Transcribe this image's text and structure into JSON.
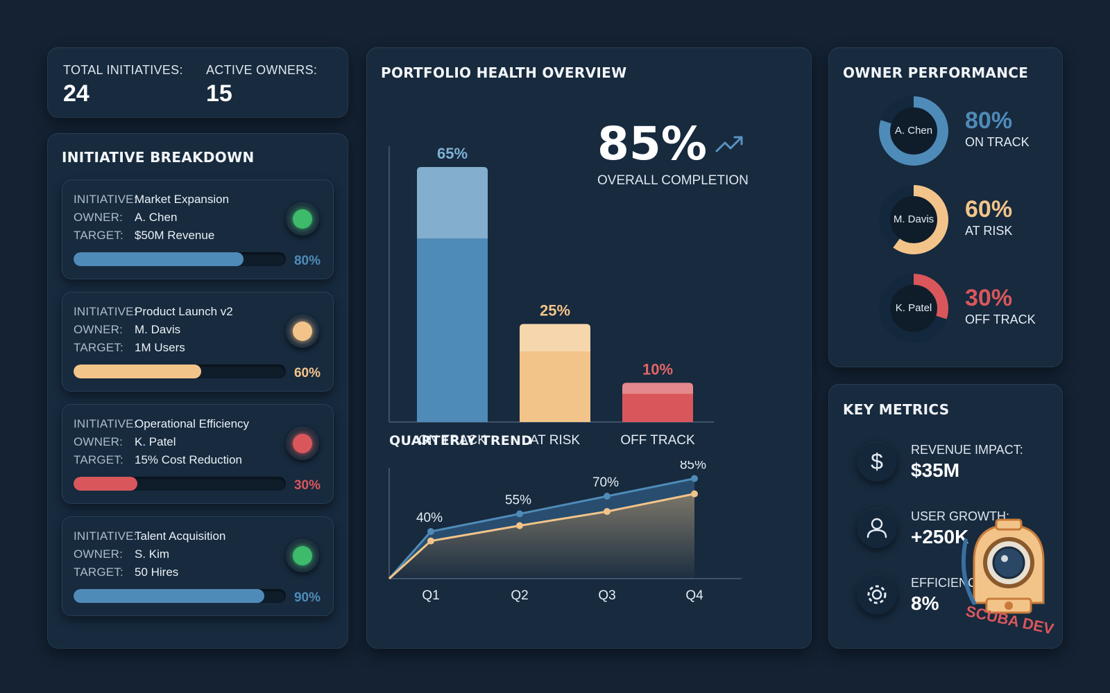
{
  "summary": {
    "total_label": "TOTAL INITIATIVES:",
    "total_value": "24",
    "owners_label": "ACTIVE OWNERS:",
    "owners_value": "15"
  },
  "breakdown": {
    "title": "INITIATIVE BREAKDOWN",
    "key_initiative": "INITIATIVE:",
    "key_owner": "OWNER:",
    "key_target": "TARGET:",
    "items": [
      {
        "initiative": "Market Expansion",
        "owner": "A. Chen",
        "target": "$50M Revenue",
        "progress": 0.8,
        "pct": "80%",
        "color": "#4f8bb8",
        "status_color": "#3dba6a"
      },
      {
        "initiative": "Product Launch v2",
        "owner": "M. Davis",
        "target": "1M Users",
        "progress": 0.6,
        "pct": "60%",
        "color": "#f3c48a",
        "status_color": "#f3c48a"
      },
      {
        "initiative": "Operational Efficiency",
        "owner": "K. Patel",
        "target": "15% Cost Reduction",
        "progress": 0.3,
        "pct": "30%",
        "color": "#d9575b",
        "status_color": "#d9575b"
      },
      {
        "initiative": "Talent Acquisition",
        "owner": "S. Kim",
        "target": "50 Hires",
        "progress": 0.9,
        "pct": "90%",
        "color": "#4f8bb8",
        "status_color": "#3dba6a"
      }
    ]
  },
  "health": {
    "title": "PORTFOLIO HEALTH OVERVIEW",
    "overall_value": "85%",
    "overall_label": "OVERALL COMPLETION",
    "trend_title": "QUARTERLY TREND"
  },
  "chart_data": [
    {
      "type": "bar",
      "categories": [
        "ON TRACK",
        "AT RISK",
        "OFF TRACK"
      ],
      "values": [
        65,
        25,
        10
      ],
      "labels": [
        "65%",
        "25%",
        "10%"
      ],
      "colors": [
        "#4f8bb8",
        "#f3c48a",
        "#d9575b"
      ],
      "label_colors": [
        "#7fb1d6",
        "#f3c48a",
        "#e46568"
      ],
      "ylim": [
        0,
        65
      ]
    },
    {
      "type": "area",
      "title": "QUARTERLY TREND",
      "categories": [
        "Q1",
        "Q2",
        "Q3",
        "Q4"
      ],
      "series": [
        {
          "values": [
            40,
            55,
            70,
            85
          ],
          "labels": [
            "40%",
            "55%",
            "70%",
            "85%"
          ],
          "color": "#4f8bb8"
        },
        {
          "values": [
            32,
            45,
            57,
            72
          ],
          "color": "#f3c48a"
        }
      ],
      "ylim": [
        0,
        100
      ]
    }
  ],
  "owners": {
    "title": "OWNER PERFORMANCE",
    "items": [
      {
        "name": "A. Chen",
        "pct": "80%",
        "value": 0.8,
        "status": "ON TRACK",
        "color": "#4f8bb8"
      },
      {
        "name": "M. Davis",
        "pct": "60%",
        "value": 0.6,
        "status": "AT RISK",
        "color": "#f3c48a"
      },
      {
        "name": "K. Patel",
        "pct": "30%",
        "value": 0.3,
        "status": "OFF TRACK",
        "color": "#d9575b"
      }
    ]
  },
  "metrics": {
    "title": "KEY METRICS",
    "items": [
      {
        "label": "REVENUE IMPACT:",
        "value": "$35M",
        "icon": "dollar-icon"
      },
      {
        "label": "USER GROWTH:",
        "value": "+250K",
        "icon": "user-icon"
      },
      {
        "label": "EFFICIENCY GAIN:",
        "value": "8%",
        "icon": "gear-icon"
      }
    ]
  },
  "watermark": {
    "text": "SCUBA DEV"
  }
}
